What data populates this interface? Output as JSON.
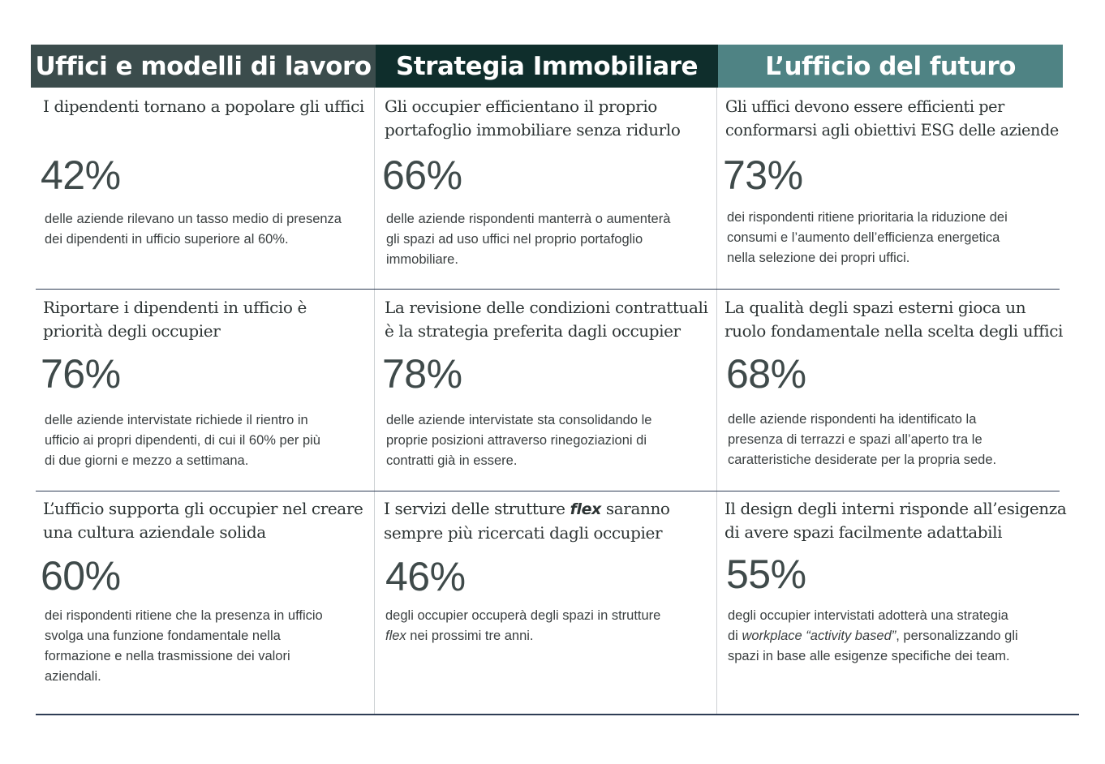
{
  "headers": [
    "Uffici e modelli di lavoro",
    "Strategia Immobiliare",
    "L’ufficio del futuro"
  ],
  "rows": [
    [
      {
        "title": [
          "I dipendenti tornano a popolare gli uffici"
        ],
        "stat": "42%",
        "desc": [
          "delle aziende rilevano un tasso medio di presenza",
          "dei dipendenti in ufficio superiore al 60%."
        ]
      },
      {
        "title": [
          "Gli occupier efficientano il proprio",
          "portafoglio immobiliare senza ridurlo"
        ],
        "stat": "66%",
        "desc": [
          "delle aziende rispondenti manterrà o aumenterà",
          "gli spazi ad uso uffici nel proprio portafoglio",
          "immobiliare."
        ]
      },
      {
        "title": [
          "Gli uffici devono essere efficienti per",
          "conformarsi agli obiettivi ESG delle aziende"
        ],
        "stat": "73%",
        "desc": [
          "dei rispondenti ritiene prioritaria la riduzione dei",
          "consumi e l’aumento dell’efficienza energetica",
          "nella selezione dei propri uffici."
        ]
      }
    ],
    [
      {
        "title": [
          "Riportare i dipendenti in ufficio è",
          "priorità degli occupier"
        ],
        "stat": "76%",
        "desc": [
          "delle aziende intervistate richiede il rientro in",
          "ufficio ai propri dipendenti, di cui il 60% per più",
          "di due giorni e mezzo a settimana."
        ]
      },
      {
        "title": [
          "La revisione delle condizioni contrattuali",
          "è la strategia preferita dagli occupier"
        ],
        "stat": "78%",
        "desc": [
          "delle aziende intervistate sta consolidando le",
          "proprie posizioni attraverso rinegoziazioni di",
          "contratti già in essere."
        ]
      },
      {
        "title": [
          "La qualità degli spazi esterni gioca un",
          "ruolo fondamentale nella scelta degli uffici"
        ],
        "stat": "68%",
        "desc": [
          "delle aziende rispondenti ha identificato la",
          "presenza di terrazzi e spazi all’aperto tra le",
          "caratteristiche desiderate per la propria sede."
        ]
      }
    ],
    [
      {
        "title": [
          "L’ufficio supporta gli occupier nel creare",
          "una cultura aziendale solida"
        ],
        "stat": "60%",
        "desc": [
          "dei rispondenti ritiene che la presenza in ufficio",
          "svolga una funzione fondamentale nella",
          "formazione e nella trasmissione dei valori",
          "aziendali."
        ]
      },
      {
        "title": [
          "I servizi delle strutture",
          "flex",
          "saranno",
          "sempre più ricercati dagli occupier"
        ],
        "stat": "46%",
        "desc": [
          "degli occupier occuperà degli spazi in strutture",
          "flex",
          "nei prossimi tre anni."
        ]
      },
      {
        "title": [
          "Il design degli interni risponde all’esigenza",
          "di avere spazi facilmente adattabili"
        ],
        "stat": "55%",
        "desc": [
          "degli occupier intervistati adotterà una strategia",
          "di",
          "workplace “activity based”",
          ", personalizzando gli",
          "spazi in base alle esigenze specifiche dei team."
        ]
      }
    ]
  ]
}
